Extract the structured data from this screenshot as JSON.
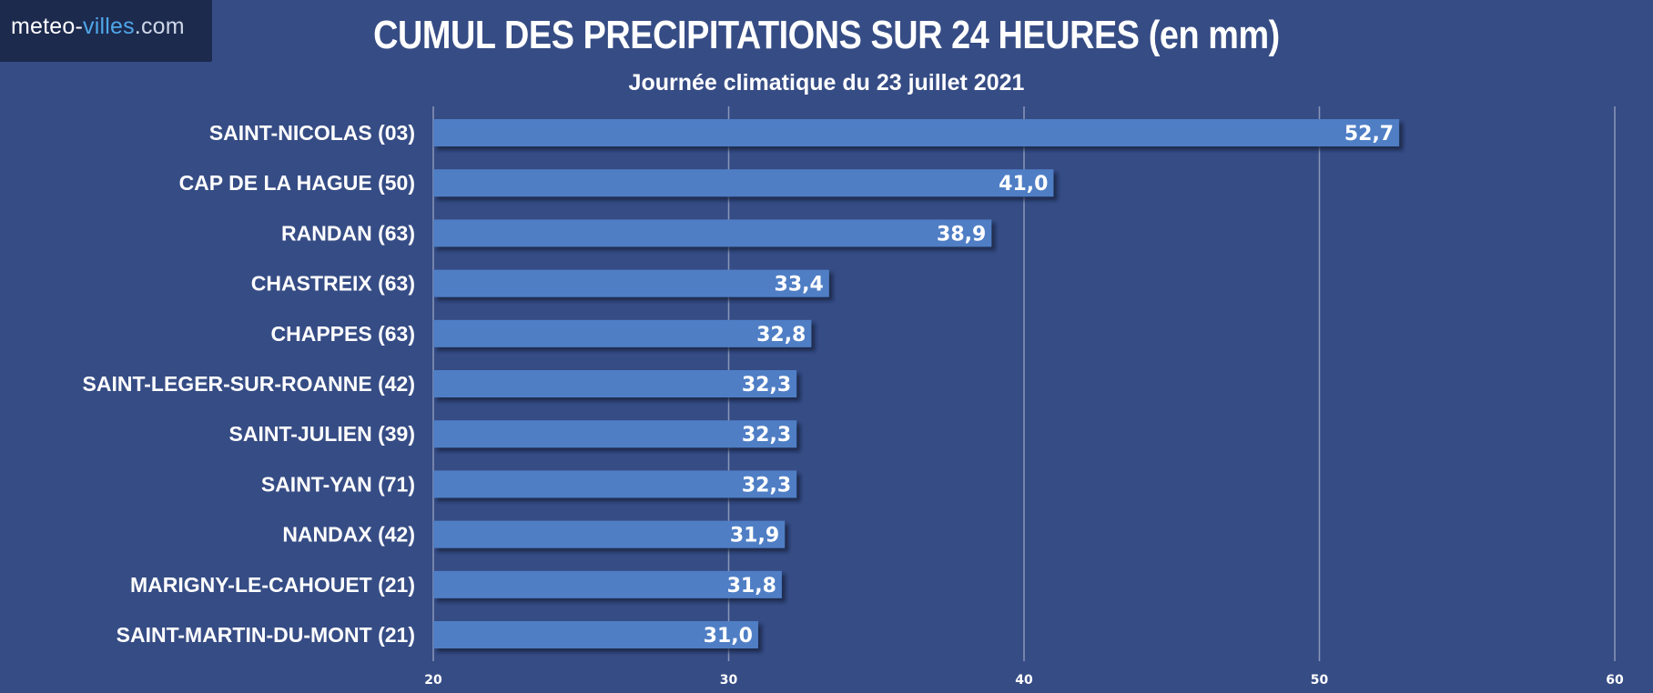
{
  "brand": {
    "part1": "meteo-",
    "part2": "villes",
    "part3": ".com"
  },
  "chart_data": {
    "type": "bar",
    "orientation": "horizontal",
    "title": "CUMUL DES PRECIPITATIONS SUR 24 HEURES (en mm)",
    "subtitle": "Journée climatique du 23 juillet 2021",
    "categories": [
      "SAINT-NICOLAS (03)",
      "CAP DE LA HAGUE (50)",
      "RANDAN (63)",
      "CHASTREIX (63)",
      "CHAPPES (63)",
      "SAINT-LEGER-SUR-ROANNE (42)",
      "SAINT-JULIEN (39)",
      "SAINT-YAN (71)",
      "NANDAX (42)",
      "MARIGNY-LE-CAHOUET (21)",
      "SAINT-MARTIN-DU-MONT (21)"
    ],
    "values": [
      52.7,
      41.0,
      38.9,
      33.4,
      32.8,
      32.3,
      32.3,
      32.3,
      31.9,
      31.8,
      31.0
    ],
    "value_labels": [
      "52,7",
      "41,0",
      "38,9",
      "33,4",
      "32,8",
      "32,3",
      "32,3",
      "32,3",
      "31,9",
      "31,8",
      "31,0"
    ],
    "xlim": [
      20,
      60
    ],
    "xticks": [
      "20",
      "30",
      "40",
      "50",
      "60"
    ],
    "grid": true,
    "colors": {
      "bar": "#4f7ec5",
      "background": "#364c85",
      "grid": "#8a97b8"
    }
  }
}
